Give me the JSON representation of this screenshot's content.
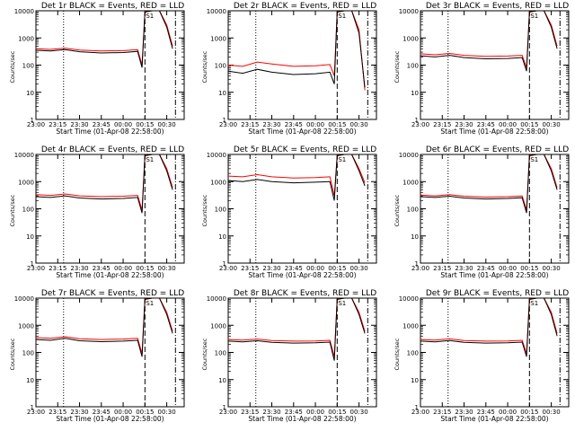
{
  "figure": {
    "xlabel": "Start Time (01-Apr-08 22:58:00)",
    "ylabel": "Counts/sec"
  },
  "colors": {
    "events": "#000000",
    "lld": "#ff0000",
    "axes": "#000000",
    "background": "#ffffff"
  },
  "chart_data": [
    {
      "type": "line",
      "title": "Det 1r BLACK = Events, RED = LLD",
      "marker": "S1",
      "xlabel": "Start Time (01-Apr-08 22:58:00)",
      "ylabel": "Counts/sec",
      "yscale": "log",
      "ylim": [
        1,
        10000
      ],
      "y_ticks": [
        "1",
        "10",
        "100",
        "1000",
        "10000"
      ],
      "x_ticks": [
        "23:00",
        "23:15",
        "23:30",
        "23:45",
        "00:00",
        "00:15",
        "00:30"
      ],
      "series": [
        {
          "name": "Events",
          "color": "black",
          "x": [
            "23:00",
            "23:10",
            "23:20",
            "23:30",
            "23:45",
            "00:00",
            "00:10",
            "00:13",
            "00:15",
            "00:20",
            "00:25",
            "00:30",
            "00:34"
          ],
          "y": [
            350,
            330,
            370,
            310,
            280,
            290,
            320,
            80,
            9000,
            10000,
            10000,
            2500,
            400
          ]
        },
        {
          "name": "LLD",
          "color": "red",
          "x": [
            "23:00",
            "23:10",
            "23:20",
            "23:30",
            "23:45",
            "00:00",
            "00:10",
            "00:13",
            "00:15",
            "00:20",
            "00:25",
            "00:30",
            "00:34"
          ],
          "y": [
            400,
            380,
            420,
            360,
            330,
            340,
            370,
            100,
            9000,
            10000,
            10000,
            3000,
            500
          ]
        }
      ]
    },
    {
      "type": "line",
      "title": "Det 2r BLACK = Events, RED = LLD",
      "marker": "S1",
      "xlabel": "Start Time (01-Apr-08 22:58:00)",
      "ylabel": "Counts/sec",
      "yscale": "log",
      "ylim": [
        1,
        10000
      ],
      "y_ticks": [
        "1",
        "10",
        "100",
        "1000",
        "10000"
      ],
      "x_ticks": [
        "23:00",
        "23:15",
        "23:30",
        "23:45",
        "00:00",
        "00:15",
        "00:30"
      ],
      "series": [
        {
          "name": "Events",
          "color": "black",
          "x": [
            "23:00",
            "23:10",
            "23:20",
            "23:30",
            "23:45",
            "00:00",
            "00:10",
            "00:13",
            "00:15",
            "00:20",
            "00:25",
            "00:30",
            "00:34"
          ],
          "y": [
            60,
            50,
            70,
            55,
            45,
            48,
            55,
            20,
            9000,
            10000,
            10000,
            1500,
            15
          ]
        },
        {
          "name": "LLD",
          "color": "red",
          "x": [
            "23:00",
            "23:10",
            "23:20",
            "23:30",
            "23:45",
            "00:00",
            "00:10",
            "00:13",
            "00:15",
            "00:20",
            "00:25",
            "00:30",
            "00:34"
          ],
          "y": [
            100,
            90,
            130,
            110,
            90,
            95,
            105,
            40,
            9000,
            10000,
            10000,
            2000,
            12
          ]
        }
      ]
    },
    {
      "type": "line",
      "title": "Det 3r BLACK = Events, RED = LLD",
      "marker": "S1",
      "xlabel": "Start Time (01-Apr-08 22:58:00)",
      "ylabel": "Counts/sec",
      "yscale": "log",
      "ylim": [
        1,
        10000
      ],
      "y_ticks": [
        "1",
        "10",
        "100",
        "1000",
        "10000"
      ],
      "x_ticks": [
        "23:00",
        "23:15",
        "23:30",
        "23:45",
        "00:00",
        "00:15",
        "00:30"
      ],
      "series": [
        {
          "name": "Events",
          "color": "black",
          "x": [
            "23:00",
            "23:10",
            "23:20",
            "23:30",
            "23:45",
            "00:00",
            "00:10",
            "00:13",
            "00:15",
            "00:20",
            "00:25",
            "00:30",
            "00:34"
          ],
          "y": [
            220,
            200,
            230,
            190,
            170,
            175,
            190,
            60,
            9000,
            10000,
            10000,
            2500,
            400
          ]
        },
        {
          "name": "LLD",
          "color": "red",
          "x": [
            "23:00",
            "23:10",
            "23:20",
            "23:30",
            "23:45",
            "00:00",
            "00:10",
            "00:13",
            "00:15",
            "00:20",
            "00:25",
            "00:30",
            "00:34"
          ],
          "y": [
            260,
            240,
            270,
            230,
            210,
            215,
            230,
            80,
            9000,
            10000,
            10000,
            3000,
            500
          ]
        }
      ]
    },
    {
      "type": "line",
      "title": "Det 4r BLACK = Events, RED = LLD",
      "marker": "S1",
      "xlabel": "Start Time (01-Apr-08 22:58:00)",
      "ylabel": "Counts/sec",
      "yscale": "log",
      "ylim": [
        1,
        10000
      ],
      "y_ticks": [
        "1",
        "10",
        "100",
        "1000",
        "10000"
      ],
      "x_ticks": [
        "23:00",
        "23:15",
        "23:30",
        "23:45",
        "00:00",
        "00:15",
        "00:30"
      ],
      "series": [
        {
          "name": "Events",
          "color": "black",
          "x": [
            "23:00",
            "23:10",
            "23:20",
            "23:30",
            "23:45",
            "00:00",
            "00:10",
            "00:13",
            "00:15",
            "00:20",
            "00:25",
            "00:30",
            "00:34"
          ],
          "y": [
            280,
            260,
            300,
            250,
            230,
            240,
            260,
            70,
            9000,
            10000,
            10000,
            2500,
            500
          ]
        },
        {
          "name": "LLD",
          "color": "red",
          "x": [
            "23:00",
            "23:10",
            "23:20",
            "23:30",
            "23:45",
            "00:00",
            "00:10",
            "00:13",
            "00:15",
            "00:20",
            "00:25",
            "00:30",
            "00:34"
          ],
          "y": [
            330,
            310,
            350,
            300,
            280,
            290,
            310,
            90,
            9000,
            10000,
            10000,
            3000,
            600
          ]
        }
      ]
    },
    {
      "type": "line",
      "title": "Det 5r BLACK = Events, RED = LLD",
      "marker": "S1",
      "xlabel": "Start Time (01-Apr-08 22:58:00)",
      "ylabel": "Counts/sec",
      "yscale": "log",
      "ylim": [
        1,
        10000
      ],
      "y_ticks": [
        "1",
        "10",
        "100",
        "1000",
        "10000"
      ],
      "x_ticks": [
        "23:00",
        "23:15",
        "23:30",
        "23:45",
        "00:00",
        "00:15",
        "00:30"
      ],
      "series": [
        {
          "name": "Events",
          "color": "black",
          "x": [
            "23:00",
            "23:10",
            "23:20",
            "23:30",
            "23:45",
            "00:00",
            "00:10",
            "00:13",
            "00:15",
            "00:20",
            "00:25",
            "00:30",
            "00:34"
          ],
          "y": [
            1100,
            1000,
            1200,
            1000,
            900,
            950,
            1000,
            200,
            9000,
            10000,
            10000,
            2500,
            700
          ]
        },
        {
          "name": "LLD",
          "color": "red",
          "x": [
            "23:00",
            "23:10",
            "23:20",
            "23:30",
            "23:45",
            "00:00",
            "00:10",
            "00:13",
            "00:15",
            "00:20",
            "00:25",
            "00:30",
            "00:34"
          ],
          "y": [
            1600,
            1500,
            1800,
            1500,
            1350,
            1400,
            1500,
            300,
            9000,
            10000,
            10000,
            3000,
            900
          ]
        }
      ]
    },
    {
      "type": "line",
      "title": "Det 6r BLACK = Events, RED = LLD",
      "marker": "S1",
      "xlabel": "Start Time (01-Apr-08 22:58:00)",
      "ylabel": "Counts/sec",
      "yscale": "log",
      "ylim": [
        1,
        10000
      ],
      "y_ticks": [
        "1",
        "10",
        "100",
        "1000",
        "10000"
      ],
      "x_ticks": [
        "23:00",
        "23:15",
        "23:30",
        "23:45",
        "00:00",
        "00:15",
        "00:30"
      ],
      "series": [
        {
          "name": "Events",
          "color": "black",
          "x": [
            "23:00",
            "23:10",
            "23:20",
            "23:30",
            "23:45",
            "00:00",
            "00:10",
            "00:13",
            "00:15",
            "00:20",
            "00:25",
            "00:30",
            "00:34"
          ],
          "y": [
            280,
            260,
            290,
            250,
            230,
            240,
            255,
            70,
            9000,
            10000,
            10000,
            2500,
            500
          ]
        },
        {
          "name": "LLD",
          "color": "red",
          "x": [
            "23:00",
            "23:10",
            "23:20",
            "23:30",
            "23:45",
            "00:00",
            "00:10",
            "00:13",
            "00:15",
            "00:20",
            "00:25",
            "00:30",
            "00:34"
          ],
          "y": [
            320,
            300,
            330,
            290,
            270,
            280,
            295,
            90,
            9000,
            10000,
            10000,
            3000,
            600
          ]
        }
      ]
    },
    {
      "type": "line",
      "title": "Det 7r BLACK = Events, RED = LLD",
      "marker": "S1",
      "xlabel": "Start Time (01-Apr-08 22:58:00)",
      "ylabel": "Counts/sec",
      "yscale": "log",
      "ylim": [
        1,
        10000
      ],
      "y_ticks": [
        "1",
        "10",
        "100",
        "1000",
        "10000"
      ],
      "x_ticks": [
        "23:00",
        "23:15",
        "23:30",
        "23:45",
        "00:00",
        "00:15",
        "00:30"
      ],
      "series": [
        {
          "name": "Events",
          "color": "black",
          "x": [
            "23:00",
            "23:10",
            "23:20",
            "23:30",
            "23:45",
            "00:00",
            "00:10",
            "00:13",
            "00:15",
            "00:20",
            "00:25",
            "00:30",
            "00:34"
          ],
          "y": [
            300,
            280,
            330,
            270,
            250,
            260,
            280,
            70,
            9000,
            10000,
            10000,
            2500,
            500
          ]
        },
        {
          "name": "LLD",
          "color": "red",
          "x": [
            "23:00",
            "23:10",
            "23:20",
            "23:30",
            "23:45",
            "00:00",
            "00:10",
            "00:13",
            "00:15",
            "00:20",
            "00:25",
            "00:30",
            "00:34"
          ],
          "y": [
            350,
            330,
            380,
            320,
            300,
            310,
            330,
            90,
            9000,
            10000,
            10000,
            3000,
            600
          ]
        }
      ]
    },
    {
      "type": "line",
      "title": "Det 8r BLACK = Events, RED = LLD",
      "marker": "S1",
      "xlabel": "Start Time (01-Apr-08 22:58:00)",
      "ylabel": "Counts/sec",
      "yscale": "log",
      "ylim": [
        1,
        10000
      ],
      "y_ticks": [
        "1",
        "10",
        "100",
        "1000",
        "10000"
      ],
      "x_ticks": [
        "23:00",
        "23:15",
        "23:30",
        "23:45",
        "00:00",
        "00:15",
        "00:30"
      ],
      "series": [
        {
          "name": "Events",
          "color": "black",
          "x": [
            "23:00",
            "23:10",
            "23:20",
            "23:30",
            "23:45",
            "00:00",
            "00:10",
            "00:13",
            "00:15",
            "00:20",
            "00:25",
            "00:30",
            "00:34"
          ],
          "y": [
            260,
            245,
            270,
            235,
            220,
            225,
            240,
            50,
            9000,
            10000,
            10000,
            2500,
            500
          ]
        },
        {
          "name": "LLD",
          "color": "red",
          "x": [
            "23:00",
            "23:10",
            "23:20",
            "23:30",
            "23:45",
            "00:00",
            "00:10",
            "00:13",
            "00:15",
            "00:20",
            "00:25",
            "00:30",
            "00:34"
          ],
          "y": [
            300,
            285,
            310,
            275,
            260,
            265,
            280,
            70,
            9000,
            10000,
            10000,
            3000,
            600
          ]
        }
      ]
    },
    {
      "type": "line",
      "title": "Det 9r BLACK = Events, RED = LLD",
      "marker": "S1",
      "xlabel": "Start Time (01-Apr-08 22:58:00)",
      "ylabel": "Counts/sec",
      "yscale": "log",
      "ylim": [
        1,
        10000
      ],
      "y_ticks": [
        "1",
        "10",
        "100",
        "1000",
        "10000"
      ],
      "x_ticks": [
        "23:00",
        "23:15",
        "23:30",
        "23:45",
        "00:00",
        "00:15",
        "00:30"
      ],
      "series": [
        {
          "name": "Events",
          "color": "black",
          "x": [
            "23:00",
            "23:10",
            "23:20",
            "23:30",
            "23:45",
            "00:00",
            "00:10",
            "00:13",
            "00:15",
            "00:20",
            "00:25",
            "00:30",
            "00:34"
          ],
          "y": [
            260,
            245,
            275,
            235,
            220,
            225,
            240,
            70,
            9000,
            10000,
            10000,
            2500,
            400
          ]
        },
        {
          "name": "LLD",
          "color": "red",
          "x": [
            "23:00",
            "23:10",
            "23:20",
            "23:30",
            "23:45",
            "00:00",
            "00:10",
            "00:13",
            "00:15",
            "00:20",
            "00:25",
            "00:30",
            "00:34"
          ],
          "y": [
            300,
            285,
            315,
            275,
            260,
            265,
            280,
            90,
            9000,
            10000,
            10000,
            3000,
            500
          ]
        }
      ]
    }
  ]
}
